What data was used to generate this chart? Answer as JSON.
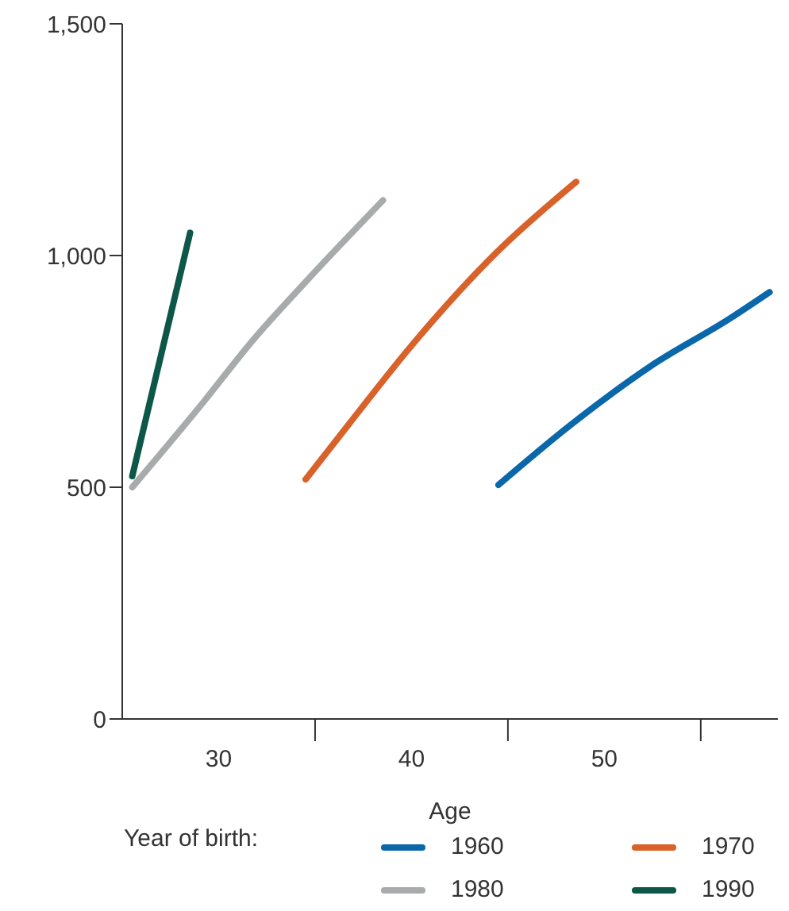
{
  "chart_data": {
    "type": "line",
    "xlabel": "Age",
    "legend_title": "Year of birth:",
    "legend": "bottom",
    "xlim": [
      25,
      59
    ],
    "xticks": [
      {
        "value": 30,
        "label": "30"
      },
      {
        "value": 35,
        "label": null
      },
      {
        "value": 40,
        "label": "40"
      },
      {
        "value": 45,
        "label": null
      },
      {
        "value": 50,
        "label": "50"
      },
      {
        "value": 55,
        "label": null
      }
    ],
    "ylim": [
      0,
      1500
    ],
    "yticks": [
      0,
      500,
      {
        "value": 1000,
        "label": "1,000"
      },
      {
        "value": 1500,
        "label": "1,500"
      }
    ],
    "series": [
      {
        "name": "1960",
        "color": "#0a68aa",
        "x": [
          44.51,
          48.27,
          52.39,
          56.51,
          58.57
        ],
        "values": [
          505,
          635,
          761,
          864,
          921
        ]
      },
      {
        "name": "1970",
        "color": "#d9622b",
        "x": [
          34.51,
          36.73,
          40.03,
          44.42,
          48.54
        ],
        "values": [
          517,
          635,
          807,
          1007,
          1159
        ]
      },
      {
        "name": "1980",
        "color": "#a7abab",
        "x": [
          25.52,
          29.04,
          31.79,
          34.53,
          38.52
        ],
        "values": [
          500,
          675,
          818,
          944,
          1119
        ]
      },
      {
        "name": "1990",
        "color": "#0d5748",
        "x": [
          25.52,
          28.52
        ],
        "values": [
          524,
          1049
        ]
      }
    ]
  }
}
